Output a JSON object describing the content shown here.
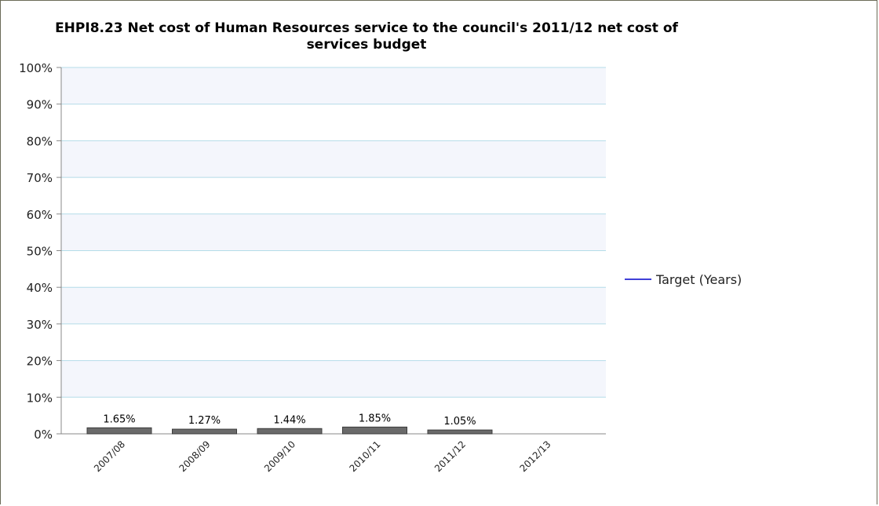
{
  "chart_data": {
    "type": "bar",
    "title_line1": "EHPI8.23 Net cost of Human Resources service to the council's 2011/12 net cost of",
    "title_line2": "services budget",
    "categories": [
      "2007/08",
      "2008/09",
      "2009/10",
      "2010/11",
      "2011/12",
      "2012/13"
    ],
    "values": [
      1.65,
      1.27,
      1.44,
      1.85,
      1.05,
      null
    ],
    "data_labels": [
      "1.65%",
      "1.27%",
      "1.44%",
      "1.85%",
      "1.05%",
      ""
    ],
    "ylim": [
      0,
      100
    ],
    "y_ticks": [
      0,
      10,
      20,
      30,
      40,
      50,
      60,
      70,
      80,
      90,
      100
    ],
    "y_tick_labels": [
      "0%",
      "10%",
      "20%",
      "30%",
      "40%",
      "50%",
      "60%",
      "70%",
      "80%",
      "90%",
      "100%"
    ],
    "grid": true,
    "legend": {
      "placement": "right",
      "entries": [
        {
          "name": "Target (Years)",
          "color": "#0000cc",
          "style": "line"
        }
      ]
    },
    "colors": {
      "bar_fill": "#6a6a6a",
      "band_fill": "#f4f6fc",
      "grid_line": "#b4dce8"
    }
  }
}
